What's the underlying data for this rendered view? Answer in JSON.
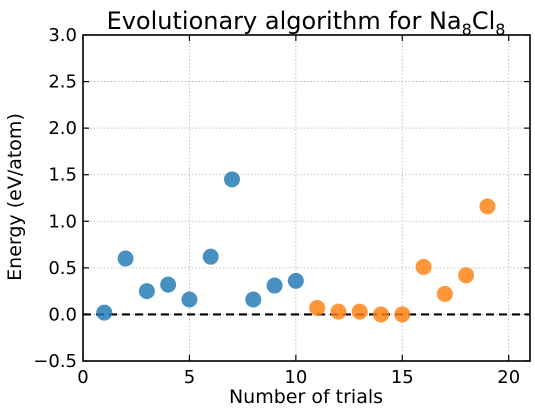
{
  "chart_data": {
    "type": "scatter",
    "title": {
      "prefix": "Evolutionary algorithm for Na",
      "sub1": "8",
      "mid": "Cl",
      "sub2": "8"
    },
    "xlabel": "Number of trials",
    "ylabel": "Energy (eV/atom)",
    "xlim": [
      0,
      21
    ],
    "ylim": [
      -0.5,
      3.0
    ],
    "xticks": [
      0,
      5,
      10,
      15,
      20
    ],
    "xtick_labels": [
      "0",
      "5",
      "10",
      "15",
      "20"
    ],
    "yticks": [
      -0.5,
      0.0,
      0.5,
      1.0,
      1.5,
      2.0,
      2.5,
      3.0
    ],
    "ytick_labels": [
      "−0.5",
      "0.0",
      "0.5",
      "1.0",
      "1.5",
      "2.0",
      "2.5",
      "3.0"
    ],
    "grid": true,
    "reference_line": {
      "y": 0.0,
      "style": "dashed",
      "color": "#000000"
    },
    "series": [
      {
        "color": "#1f77b4",
        "x": [
          1,
          2,
          3,
          4,
          5,
          6,
          7,
          8,
          9,
          10
        ],
        "y": [
          0.02,
          0.6,
          0.25,
          0.32,
          0.16,
          0.62,
          1.45,
          0.16,
          0.31,
          0.36
        ]
      },
      {
        "color": "#ff7f0e",
        "x": [
          11,
          12,
          13,
          14,
          15,
          16,
          17,
          18,
          19
        ],
        "y": [
          0.07,
          0.03,
          0.03,
          0.0,
          0.0,
          0.51,
          0.22,
          0.42,
          1.16
        ]
      }
    ]
  }
}
